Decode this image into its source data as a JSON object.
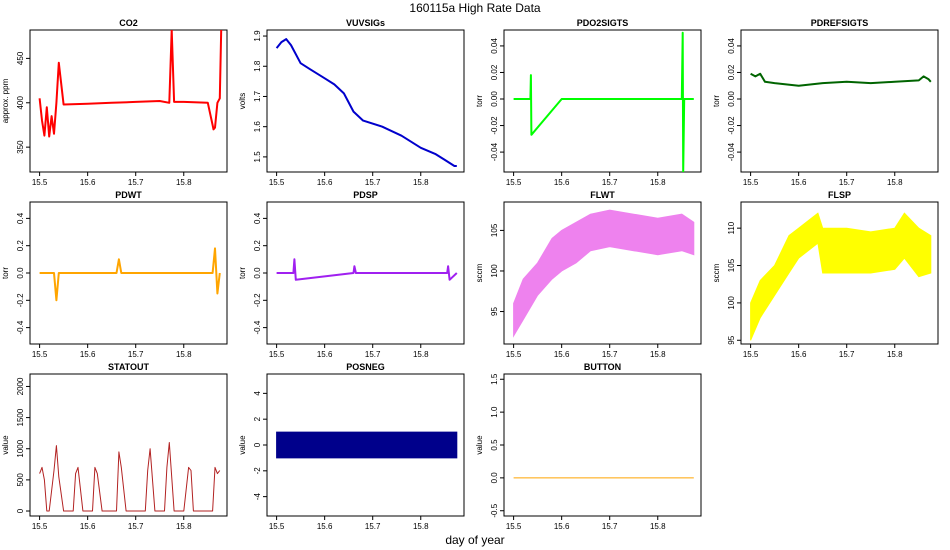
{
  "figure": {
    "title": "160115a   High Rate Data",
    "xlabel": "day of year"
  },
  "chart_data": [
    {
      "type": "line",
      "title": "CO2",
      "ylabel": "approx. ppm",
      "color": "#ff0000",
      "xlim": [
        15.48,
        15.89
      ],
      "ylim": [
        322,
        482
      ],
      "xticks": [
        "15.5",
        "15.6",
        "15.7",
        "15.8"
      ],
      "xtick_values": [
        15.5,
        15.6,
        15.7,
        15.8
      ],
      "yticks": [
        "350",
        "400",
        "450"
      ],
      "ytick_values": [
        350,
        400,
        450
      ],
      "series": [
        {
          "x": [
            15.5,
            15.505,
            15.51,
            15.515,
            15.52,
            15.525,
            15.53,
            15.535,
            15.54,
            15.55,
            15.6,
            15.65,
            15.7,
            15.75,
            15.77,
            15.775,
            15.78,
            15.8,
            15.85,
            15.86,
            15.862,
            15.865,
            15.87,
            15.875,
            15.878
          ],
          "y": [
            405,
            380,
            363,
            395,
            362,
            385,
            365,
            400,
            445,
            398,
            399,
            400,
            401,
            402,
            400,
            482,
            401,
            401,
            400,
            375,
            370,
            372,
            400,
            405,
            482
          ]
        }
      ]
    },
    {
      "type": "line",
      "title": "VUVSIGs",
      "ylabel": "volts",
      "color": "#0000cc",
      "xlim": [
        15.48,
        15.89
      ],
      "ylim": [
        1.45,
        1.92
      ],
      "xticks": [
        "15.5",
        "15.6",
        "15.7",
        "15.8"
      ],
      "xtick_values": [
        15.5,
        15.6,
        15.7,
        15.8
      ],
      "yticks": [
        "1.5",
        "1.6",
        "1.7",
        "1.8",
        "1.9"
      ],
      "ytick_values": [
        1.5,
        1.6,
        1.7,
        1.8,
        1.9
      ],
      "series": [
        {
          "x": [
            15.5,
            15.51,
            15.52,
            15.53,
            15.55,
            15.57,
            15.6,
            15.62,
            15.64,
            15.66,
            15.68,
            15.72,
            15.76,
            15.8,
            15.83,
            15.85,
            15.87,
            15.875
          ],
          "y": [
            1.86,
            1.88,
            1.89,
            1.87,
            1.81,
            1.79,
            1.76,
            1.74,
            1.71,
            1.65,
            1.62,
            1.6,
            1.57,
            1.53,
            1.51,
            1.49,
            1.47,
            1.47
          ]
        }
      ]
    },
    {
      "type": "line",
      "title": "PDO2SIGTS",
      "ylabel": "torr",
      "color": "#00ff00",
      "xlim": [
        15.48,
        15.89
      ],
      "ylim": [
        -0.055,
        0.052
      ],
      "xticks": [
        "15.5",
        "15.6",
        "15.7",
        "15.8"
      ],
      "xtick_values": [
        15.5,
        15.6,
        15.7,
        15.8
      ],
      "yticks": [
        "-0.04",
        "-0.02",
        "0.00",
        "0.02",
        "0.04"
      ],
      "ytick_values": [
        -0.04,
        -0.02,
        0,
        0.02,
        0.04
      ],
      "series": [
        {
          "x": [
            15.5,
            15.535,
            15.536,
            15.537,
            15.6,
            15.66,
            15.68,
            15.7,
            15.8,
            15.85,
            15.852,
            15.853,
            15.855,
            15.875
          ],
          "y": [
            0.0,
            0.0,
            0.018,
            -0.027,
            0.0,
            0.0,
            0.0,
            0.0,
            0.0,
            0.0,
            0.05,
            -0.055,
            0.0,
            0.0
          ]
        }
      ]
    },
    {
      "type": "line",
      "title": "PDREFSIGTS",
      "ylabel": "torr",
      "color": "#006400",
      "xlim": [
        15.48,
        15.89
      ],
      "ylim": [
        -0.055,
        0.052
      ],
      "xticks": [
        "15.5",
        "15.6",
        "15.7",
        "15.8"
      ],
      "xtick_values": [
        15.5,
        15.6,
        15.7,
        15.8
      ],
      "yticks": [
        "-0.04",
        "-0.02",
        "0.00",
        "0.02",
        "0.04"
      ],
      "ytick_values": [
        -0.04,
        -0.02,
        0,
        0.02,
        0.04
      ],
      "series": [
        {
          "x": [
            15.5,
            15.51,
            15.52,
            15.53,
            15.55,
            15.6,
            15.65,
            15.7,
            15.75,
            15.8,
            15.85,
            15.86,
            15.87,
            15.875
          ],
          "y": [
            0.019,
            0.017,
            0.019,
            0.013,
            0.012,
            0.01,
            0.012,
            0.013,
            0.012,
            0.013,
            0.014,
            0.017,
            0.015,
            0.013
          ]
        }
      ]
    },
    {
      "type": "line",
      "title": "PDWT",
      "ylabel": "torr",
      "color": "#ffa500",
      "xlim": [
        15.48,
        15.89
      ],
      "ylim": [
        -0.52,
        0.52
      ],
      "xticks": [
        "15.5",
        "15.6",
        "15.7",
        "15.8"
      ],
      "xtick_values": [
        15.5,
        15.6,
        15.7,
        15.8
      ],
      "yticks": [
        "-0.4",
        "-0.2",
        "0.0",
        "0.2",
        "0.4"
      ],
      "ytick_values": [
        -0.4,
        -0.2,
        0,
        0.2,
        0.4
      ],
      "series": [
        {
          "x": [
            15.5,
            15.53,
            15.535,
            15.54,
            15.66,
            15.665,
            15.67,
            15.86,
            15.865,
            15.87,
            15.875
          ],
          "y": [
            0.0,
            0.0,
            -0.2,
            0.0,
            0.0,
            0.1,
            0.0,
            0.0,
            0.18,
            -0.15,
            0.0
          ]
        }
      ]
    },
    {
      "type": "line",
      "title": "PDSP",
      "ylabel": "torr",
      "color": "#a020f0",
      "xlim": [
        15.48,
        15.89
      ],
      "ylim": [
        -0.52,
        0.52
      ],
      "xticks": [
        "15.5",
        "15.6",
        "15.7",
        "15.8"
      ],
      "xtick_values": [
        15.5,
        15.6,
        15.7,
        15.8
      ],
      "yticks": [
        "-0.4",
        "-0.2",
        "0.0",
        "0.2",
        "0.4"
      ],
      "ytick_values": [
        -0.4,
        -0.2,
        0,
        0.2,
        0.4
      ],
      "series": [
        {
          "x": [
            15.5,
            15.535,
            15.537,
            15.54,
            15.66,
            15.662,
            15.665,
            15.855,
            15.857,
            15.86,
            15.875
          ],
          "y": [
            0.0,
            0.0,
            0.1,
            -0.05,
            0.0,
            0.05,
            0.0,
            0.0,
            0.05,
            -0.05,
            0.0
          ]
        }
      ]
    },
    {
      "type": "area",
      "title": "FLWT",
      "ylabel": "sccm",
      "color": "#ee82ee",
      "xlim": [
        15.48,
        15.89
      ],
      "ylim": [
        91,
        108.5
      ],
      "xticks": [
        "15.5",
        "15.6",
        "15.7",
        "15.8"
      ],
      "xtick_values": [
        15.5,
        15.6,
        15.7,
        15.8
      ],
      "yticks": [
        "95",
        "100",
        "105"
      ],
      "ytick_values": [
        95,
        100,
        105
      ],
      "series": [
        {
          "name": "upper",
          "x": [
            15.5,
            15.52,
            15.55,
            15.58,
            15.6,
            15.63,
            15.66,
            15.7,
            15.75,
            15.8,
            15.85,
            15.875
          ],
          "y": [
            96,
            99,
            101,
            104,
            105,
            106,
            107,
            107.5,
            107,
            106.5,
            107,
            106
          ]
        },
        {
          "name": "lower",
          "x": [
            15.5,
            15.52,
            15.55,
            15.58,
            15.6,
            15.63,
            15.66,
            15.7,
            15.75,
            15.8,
            15.85,
            15.875
          ],
          "y": [
            92,
            94,
            97,
            99,
            100,
            101,
            102.5,
            103,
            102.5,
            102,
            102.5,
            102
          ]
        }
      ]
    },
    {
      "type": "area",
      "title": "FLSP",
      "ylabel": "sccm",
      "color": "#ffff00",
      "xlim": [
        15.48,
        15.89
      ],
      "ylim": [
        94.5,
        113.5
      ],
      "xticks": [
        "15.5",
        "15.6",
        "15.7",
        "15.8"
      ],
      "xtick_values": [
        15.5,
        15.6,
        15.7,
        15.8
      ],
      "yticks": [
        "95",
        "100",
        "105",
        "110"
      ],
      "ytick_values": [
        95,
        100,
        105,
        110
      ],
      "series": [
        {
          "name": "upper",
          "x": [
            15.5,
            15.52,
            15.55,
            15.58,
            15.6,
            15.62,
            15.64,
            15.65,
            15.7,
            15.75,
            15.8,
            15.82,
            15.85,
            15.875
          ],
          "y": [
            100,
            103,
            105,
            109,
            110,
            111,
            112,
            110,
            110,
            109.5,
            110,
            112,
            110,
            109
          ]
        },
        {
          "name": "lower",
          "x": [
            15.5,
            15.52,
            15.55,
            15.58,
            15.6,
            15.62,
            15.64,
            15.65,
            15.7,
            15.75,
            15.8,
            15.82,
            15.85,
            15.875
          ],
          "y": [
            95,
            98,
            101,
            104,
            106,
            107,
            108,
            104,
            104,
            104,
            104.5,
            106,
            103.5,
            104
          ]
        }
      ]
    },
    {
      "type": "line",
      "title": "STATOUT",
      "ylabel": "value",
      "color": "#b22222",
      "xlim": [
        15.48,
        15.89
      ],
      "ylim": [
        -80,
        2200
      ],
      "xticks": [
        "15.5",
        "15.6",
        "15.7",
        "15.8"
      ],
      "xtick_values": [
        15.5,
        15.6,
        15.7,
        15.8
      ],
      "yticks": [
        "0",
        "500",
        "1000",
        "1500",
        "2000"
      ],
      "ytick_values": [
        0,
        500,
        1000,
        1500,
        2000
      ],
      "series": [
        {
          "x": [
            15.5,
            15.505,
            15.51,
            15.515,
            15.52,
            15.53,
            15.535,
            15.54,
            15.55,
            15.57,
            15.575,
            15.58,
            15.59,
            15.6,
            15.61,
            15.615,
            15.62,
            15.63,
            15.64,
            15.66,
            15.665,
            15.67,
            15.68,
            15.7,
            15.72,
            15.725,
            15.73,
            15.74,
            15.75,
            15.76,
            15.765,
            15.77,
            15.78,
            15.79,
            15.8,
            15.81,
            15.815,
            15.82,
            15.83,
            15.84,
            15.86,
            15.865,
            15.87,
            15.875
          ],
          "y": [
            600,
            700,
            500,
            0,
            0,
            650,
            1050,
            550,
            0,
            0,
            600,
            700,
            0,
            0,
            0,
            700,
            600,
            0,
            0,
            0,
            950,
            700,
            0,
            0,
            0,
            650,
            1000,
            0,
            0,
            0,
            700,
            1100,
            0,
            0,
            0,
            700,
            650,
            0,
            0,
            0,
            0,
            700,
            600,
            650
          ]
        }
      ]
    },
    {
      "type": "area",
      "title": "POSNEG",
      "ylabel": "value",
      "color": "#00008b",
      "xlim": [
        15.48,
        15.89
      ],
      "ylim": [
        -5.5,
        5.5
      ],
      "xticks": [
        "15.5",
        "15.6",
        "15.7",
        "15.8"
      ],
      "xtick_values": [
        15.5,
        15.6,
        15.7,
        15.8
      ],
      "yticks": [
        "-4",
        "-2",
        "0",
        "2",
        "4"
      ],
      "ytick_values": [
        -4,
        -2,
        0,
        2,
        4
      ],
      "series": [
        {
          "name": "upper",
          "x": [
            15.5,
            15.875
          ],
          "y": [
            1,
            1
          ]
        },
        {
          "name": "lower",
          "x": [
            15.5,
            15.875
          ],
          "y": [
            -1,
            -1
          ]
        }
      ]
    },
    {
      "type": "line",
      "title": "BUTTON",
      "ylabel": "value",
      "color": "#ffa500",
      "xlim": [
        15.48,
        15.89
      ],
      "ylim": [
        -0.58,
        1.58
      ],
      "xticks": [
        "15.5",
        "15.6",
        "15.7",
        "15.8"
      ],
      "xtick_values": [
        15.5,
        15.6,
        15.7,
        15.8
      ],
      "yticks": [
        "-0.5",
        "0.0",
        "0.5",
        "1.0",
        "1.5"
      ],
      "ytick_values": [
        -0.5,
        0,
        0.5,
        1,
        1.5
      ],
      "series": [
        {
          "x": [
            15.5,
            15.875
          ],
          "y": [
            0,
            0
          ]
        }
      ]
    }
  ]
}
